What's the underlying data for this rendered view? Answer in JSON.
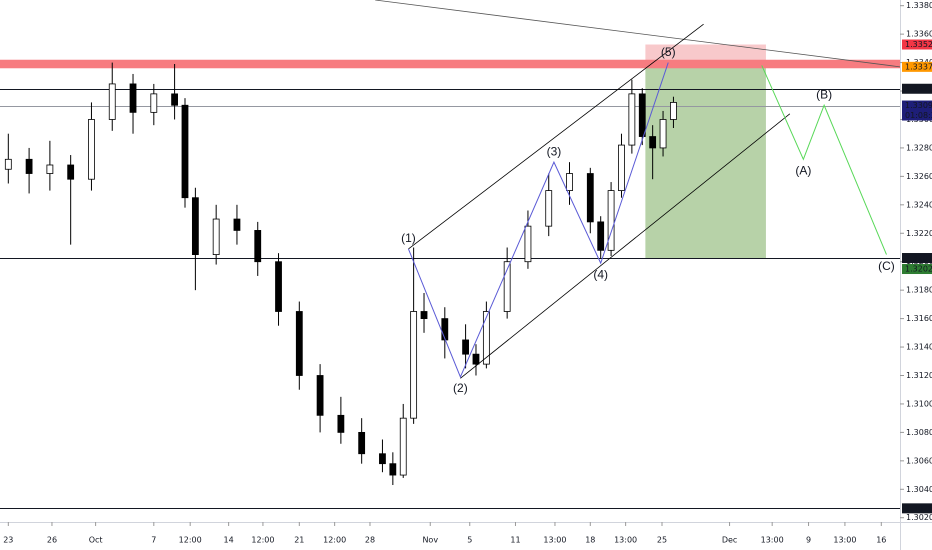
{
  "chart_data": {
    "type": "candlestick",
    "xlim": [
      -0.8,
      85.8
    ],
    "ylim": [
      1.3017,
      1.3384
    ],
    "yticks": [
      {
        "value": 1.302,
        "label": "1.30200"
      },
      {
        "value": 1.304,
        "label": "1.30400"
      },
      {
        "value": 1.306,
        "label": "1.30600"
      },
      {
        "value": 1.308,
        "label": "1.30800"
      },
      {
        "value": 1.31,
        "label": "1.31000"
      },
      {
        "value": 1.312,
        "label": "1.31200"
      },
      {
        "value": 1.314,
        "label": "1.31400"
      },
      {
        "value": 1.316,
        "label": "1.31600"
      },
      {
        "value": 1.318,
        "label": "1.31800"
      },
      {
        "value": 1.32,
        "label": "1.32000"
      },
      {
        "value": 1.322,
        "label": "1.32200"
      },
      {
        "value": 1.324,
        "label": "1.32400"
      },
      {
        "value": 1.326,
        "label": "1.32600"
      },
      {
        "value": 1.328,
        "label": "1.32800"
      },
      {
        "value": 1.33,
        "label": "1.33000"
      },
      {
        "value": 1.332,
        "label": "1.33200"
      },
      {
        "value": 1.334,
        "label": "1.33400"
      },
      {
        "value": 1.336,
        "label": "1.33600"
      },
      {
        "value": 1.338,
        "label": "1.33800"
      }
    ],
    "xticks": [
      {
        "value": 0,
        "label": "23"
      },
      {
        "value": 4.2,
        "label": "26"
      },
      {
        "value": 8.4,
        "label": "Oct"
      },
      {
        "value": 14,
        "label": "7"
      },
      {
        "value": 17.5,
        "label": "12:00"
      },
      {
        "value": 21.2,
        "label": "14"
      },
      {
        "value": 24.5,
        "label": "12:00"
      },
      {
        "value": 28,
        "label": "21"
      },
      {
        "value": 31.4,
        "label": "12:00"
      },
      {
        "value": 34.8,
        "label": "28"
      },
      {
        "value": 40.6,
        "label": "Nov"
      },
      {
        "value": 44.4,
        "label": "5"
      },
      {
        "value": 48.8,
        "label": "11"
      },
      {
        "value": 52.6,
        "label": "13:00"
      },
      {
        "value": 56,
        "label": "18"
      },
      {
        "value": 59.4,
        "label": "13:00"
      },
      {
        "value": 62.9,
        "label": "25"
      },
      {
        "value": 69.4,
        "label": "Dec"
      },
      {
        "value": 73.5,
        "label": "13:00"
      },
      {
        "value": 77,
        "label": "9"
      },
      {
        "value": 80.5,
        "label": "13:00"
      },
      {
        "value": 84,
        "label": "16"
      }
    ],
    "candles": {
      "up_color": "#ffffff",
      "down_color": "#000000",
      "border_color": "#000000",
      "x": [
        0,
        2,
        4,
        6,
        8,
        10,
        12,
        14,
        16,
        17,
        18,
        20,
        22,
        24,
        26,
        28,
        30,
        32,
        34,
        36,
        37,
        38,
        39,
        40,
        42,
        44,
        45,
        46,
        48,
        50,
        52,
        54,
        56,
        57,
        58,
        59,
        60,
        61,
        62,
        63,
        64
      ],
      "open": [
        1.3265,
        1.3272,
        1.3262,
        1.3268,
        1.3258,
        1.33,
        1.3325,
        1.3305,
        1.3318,
        1.331,
        1.3245,
        1.3205,
        1.323,
        1.3222,
        1.32,
        1.3165,
        1.312,
        1.3092,
        1.308,
        1.3065,
        1.3058,
        1.305,
        1.309,
        1.3165,
        1.316,
        1.3145,
        1.3135,
        1.3128,
        1.3165,
        1.32,
        1.3225,
        1.325,
        1.3262,
        1.3228,
        1.3208,
        1.325,
        1.3282,
        1.3318,
        1.3288,
        1.328,
        1.33
      ],
      "high": [
        1.329,
        1.328,
        1.3285,
        1.3275,
        1.3312,
        1.334,
        1.3332,
        1.3325,
        1.3339,
        1.3315,
        1.3252,
        1.324,
        1.324,
        1.3228,
        1.3206,
        1.3172,
        1.3128,
        1.3105,
        1.309,
        1.3075,
        1.3066,
        1.31,
        1.321,
        1.3178,
        1.3168,
        1.3156,
        1.3142,
        1.3172,
        1.321,
        1.3236,
        1.3262,
        1.327,
        1.3266,
        1.3232,
        1.3256,
        1.329,
        1.3328,
        1.3322,
        1.3296,
        1.3306,
        1.3316
      ],
      "low": [
        1.3255,
        1.3248,
        1.325,
        1.3212,
        1.325,
        1.3292,
        1.329,
        1.3296,
        1.33,
        1.3238,
        1.318,
        1.3198,
        1.3212,
        1.319,
        1.3155,
        1.311,
        1.308,
        1.3072,
        1.3058,
        1.3052,
        1.3043,
        1.3048,
        1.3086,
        1.315,
        1.3132,
        1.3125,
        1.312,
        1.3125,
        1.316,
        1.3195,
        1.3218,
        1.324,
        1.322,
        1.3202,
        1.3204,
        1.3245,
        1.3276,
        1.3282,
        1.3258,
        1.3274,
        1.3294
      ],
      "close": [
        1.3272,
        1.3262,
        1.3268,
        1.3258,
        1.33,
        1.3325,
        1.3305,
        1.3318,
        1.331,
        1.3245,
        1.3205,
        1.323,
        1.3222,
        1.32,
        1.3165,
        1.312,
        1.3092,
        1.308,
        1.3065,
        1.3058,
        1.305,
        1.309,
        1.3165,
        1.316,
        1.3145,
        1.3135,
        1.3128,
        1.3165,
        1.32,
        1.3225,
        1.325,
        1.3262,
        1.3228,
        1.3208,
        1.325,
        1.3282,
        1.3318,
        1.3288,
        1.328,
        1.33,
        1.3312
      ]
    },
    "resistance_zone": {
      "low": 1.3336,
      "high": 1.3342,
      "color": "#f77c80"
    },
    "position": {
      "start": 61.3,
      "end": 72.9,
      "entry": 1.3337,
      "stop": 1.33527,
      "target": 1.32026,
      "stop_color": "#f8c9cb",
      "target_color": "#b7d2a8"
    },
    "trendlines": [
      {
        "color": "#555555",
        "x": [
          35.3,
          85.8
        ],
        "y": [
          1.3384,
          1.3337
        ]
      },
      {
        "color": "#000000",
        "x": [
          38.5,
          66.9
        ],
        "y": [
          1.3209,
          1.3367
        ]
      },
      {
        "color": "#000000",
        "x": [
          43.5,
          75.2
        ],
        "y": [
          1.3118,
          1.3304
        ]
      }
    ],
    "waves": {
      "color": "#5b5bd6",
      "label_color": "#23238c",
      "labels": [
        "(1)",
        "(2)",
        "(3)",
        "(4)",
        "(5)"
      ],
      "x": [
        38.5,
        43.5,
        52.5,
        57,
        63.5
      ],
      "y": [
        1.3209,
        1.3119,
        1.327,
        1.3199,
        1.334
      ]
    },
    "projection": {
      "color": "#58d858",
      "label_color": "#1f8f1f",
      "labels": [
        null,
        "(A)",
        "(B)",
        "(C)"
      ],
      "x": [
        72.5,
        76.5,
        78.5,
        84.5
      ],
      "y": [
        1.3338,
        1.3272,
        1.331,
        1.3205
      ]
    },
    "price_levels": [
      {
        "value": 1.33527,
        "tag_color": "#f23645",
        "line": false
      },
      {
        "value": 1.3337,
        "label": "1.33370",
        "tag_color": "#ff9800",
        "line": false
      },
      {
        "value": 1.33216,
        "tag_color": "#131722",
        "line": true,
        "line_color": "#131722"
      },
      {
        "value": 1.33098,
        "tag_color": "#1e1e78",
        "line": true,
        "line_color": "#9598a1",
        "sublabel": "01:08:20"
      },
      {
        "value": 1.32026,
        "tag_color": "#131722",
        "line": true,
        "line_color": "#131722"
      },
      {
        "value": 1.32022,
        "tag_color": "#2e7d32",
        "line": false
      },
      {
        "value": 1.30266,
        "tag_color": "#131722",
        "line": true,
        "line_color": "#131722"
      }
    ]
  }
}
